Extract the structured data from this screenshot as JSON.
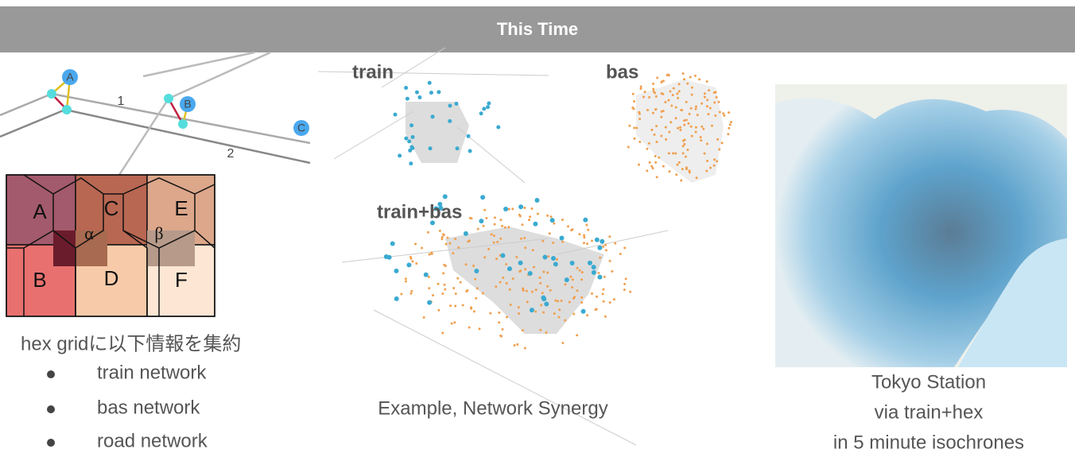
{
  "header": {
    "title": "This Time"
  },
  "diagram": {
    "nodes": [
      "A",
      "B",
      "C"
    ],
    "edges": [
      "1",
      "2"
    ],
    "hexes": [
      "A",
      "C",
      "E",
      "B",
      "D",
      "F"
    ],
    "overlaps": [
      "α",
      "β"
    ],
    "caption": "hex gridに以下情報を集約",
    "bullets": [
      "train network",
      "bas network",
      "road network"
    ]
  },
  "synergy": {
    "panels": [
      "train",
      "bas",
      "train+bas"
    ],
    "caption": "Example, Network Synergy"
  },
  "isochrone": {
    "caption": [
      "Tokyo Station",
      "via train+hex",
      "in 5 minute isochrones"
    ]
  }
}
